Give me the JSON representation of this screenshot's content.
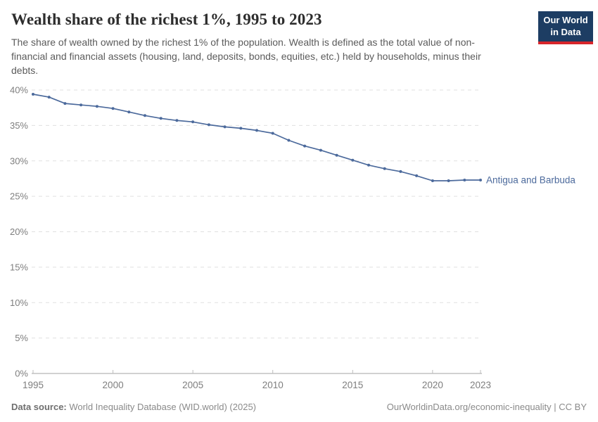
{
  "header": {
    "title": "Wealth share of the richest 1%, 1995 to 2023",
    "subtitle": "The share of wealth owned by the richest 1% of the population. Wealth is defined as the total value of non-financial and financial assets (housing, land, deposits, bonds, equities, etc.) held by households, minus their debts."
  },
  "logo": {
    "line1": "Our World",
    "line2": "in Data",
    "bg_color": "#1d3d63",
    "stripe_color": "#d7252b"
  },
  "chart_data": {
    "type": "line",
    "title": "Wealth share of the richest 1%, 1995 to 2023",
    "xlabel": "",
    "ylabel": "",
    "xlim": [
      1995,
      2023
    ],
    "ylim": [
      0,
      40
    ],
    "grid": "horizontal-dashed",
    "legend_position": "end-of-line-label",
    "x": [
      1995,
      1996,
      1997,
      1998,
      1999,
      2000,
      2001,
      2002,
      2003,
      2004,
      2005,
      2006,
      2007,
      2008,
      2009,
      2010,
      2011,
      2012,
      2013,
      2014,
      2015,
      2016,
      2017,
      2018,
      2019,
      2020,
      2021,
      2022,
      2023
    ],
    "series": [
      {
        "name": "Antigua and Barbuda",
        "color": "#4c6a9c",
        "values": [
          39.4,
          39.0,
          38.1,
          37.9,
          37.7,
          37.4,
          36.9,
          36.4,
          36.0,
          35.7,
          35.5,
          35.1,
          34.8,
          34.6,
          34.3,
          33.9,
          32.9,
          32.1,
          31.5,
          30.8,
          30.1,
          29.4,
          28.9,
          28.5,
          27.9,
          27.2,
          27.2,
          27.3,
          27.3
        ]
      }
    ],
    "x_tick_values": [
      1995,
      2000,
      2005,
      2010,
      2015,
      2020,
      2023
    ],
    "x_tick_labels": [
      "1995",
      "2000",
      "2005",
      "2010",
      "2015",
      "2020",
      "2023"
    ],
    "y_tick_values": [
      0,
      5,
      10,
      15,
      20,
      25,
      30,
      35,
      40
    ],
    "y_tick_labels": [
      "0%",
      "5%",
      "10%",
      "15%",
      "20%",
      "25%",
      "30%",
      "35%",
      "40%"
    ]
  },
  "footer": {
    "datasource_label": "Data source:",
    "datasource_text": " World Inequality Database (WID.world) (2025)",
    "attribution": "OurWorldinData.org/economic-inequality | CC BY"
  }
}
